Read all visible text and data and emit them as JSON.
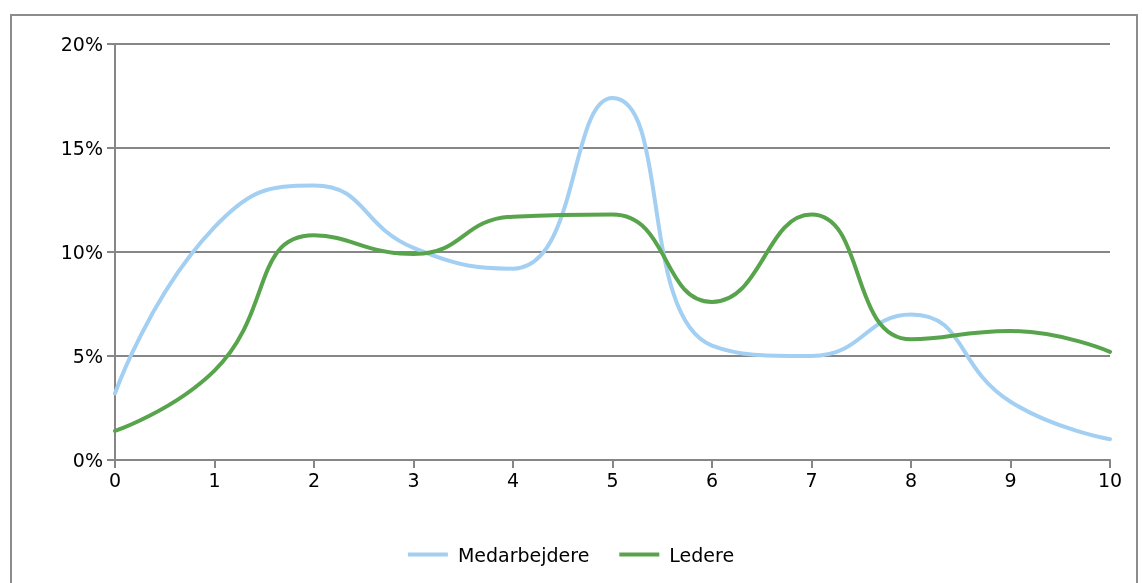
{
  "chart_data": {
    "type": "line",
    "x": [
      0,
      1,
      2,
      3,
      4,
      5,
      6,
      7,
      8,
      9,
      10
    ],
    "series": [
      {
        "name": "Medarbejdere",
        "color": "#a3cff2",
        "values": [
          3.2,
          11.2,
          13.2,
          10.2,
          9.2,
          17.4,
          5.5,
          5.0,
          7.0,
          2.8,
          1.0
        ]
      },
      {
        "name": "Ledere",
        "color": "#58a44c",
        "values": [
          1.4,
          4.3,
          10.8,
          9.9,
          11.7,
          11.8,
          7.6,
          11.8,
          5.8,
          6.2,
          5.2
        ]
      }
    ],
    "xlim": [
      0,
      10
    ],
    "xticks": [
      0,
      1,
      2,
      3,
      4,
      5,
      6,
      7,
      8,
      9,
      10
    ],
    "ylim": [
      0,
      20
    ],
    "yticks": [
      {
        "value": 0,
        "label": "0%"
      },
      {
        "value": 5,
        "label": "5%"
      },
      {
        "value": 10,
        "label": "10%"
      },
      {
        "value": 15,
        "label": "15%"
      },
      {
        "value": 20,
        "label": "20%"
      }
    ],
    "grid": "y",
    "legend": "bottom",
    "marker": "none",
    "line_style": "solid"
  }
}
